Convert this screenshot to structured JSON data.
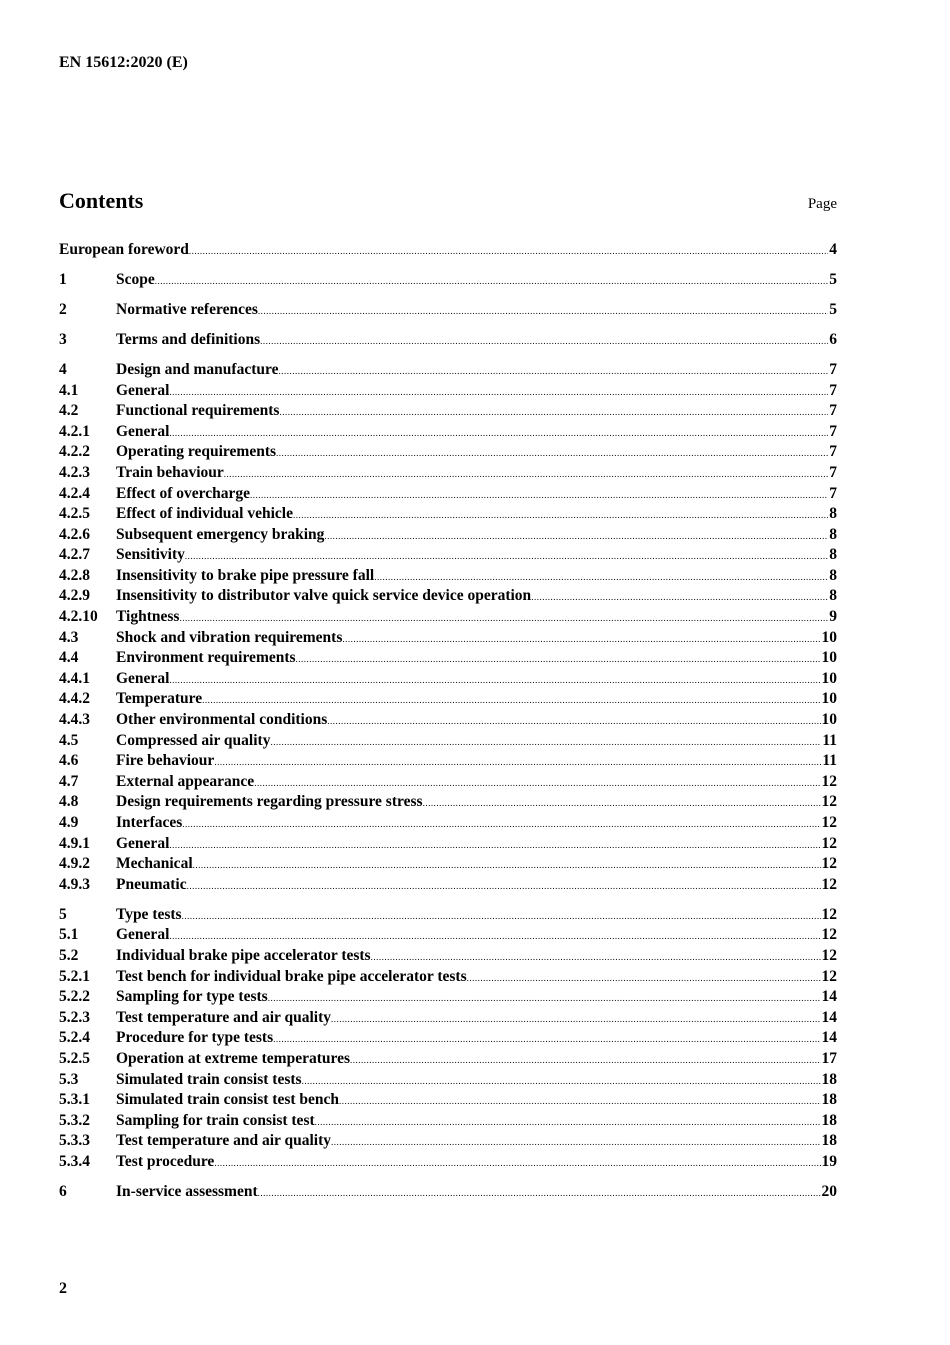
{
  "header": {
    "doc_id": "EN 15612:2020 (E)"
  },
  "contents": {
    "title": "Contents",
    "page_label": "Page"
  },
  "entries": [
    {
      "num": "",
      "title": "European foreword",
      "page": "4",
      "major": true
    },
    {
      "num": "1",
      "title": "Scope",
      "page": "5",
      "major": true
    },
    {
      "num": "2",
      "title": "Normative references",
      "page": "5",
      "major": true
    },
    {
      "num": "3",
      "title": "Terms and definitions",
      "page": "6",
      "major": true
    },
    {
      "num": "4",
      "title": "Design and manufacture",
      "page": "7",
      "major": true
    },
    {
      "num": "4.1",
      "title": "General",
      "page": "7"
    },
    {
      "num": "4.2",
      "title": "Functional requirements",
      "page": "7"
    },
    {
      "num": "4.2.1",
      "title": "General",
      "page": "7"
    },
    {
      "num": "4.2.2",
      "title": "Operating requirements",
      "page": "7"
    },
    {
      "num": "4.2.3",
      "title": "Train behaviour",
      "page": "7"
    },
    {
      "num": "4.2.4",
      "title": "Effect of overcharge",
      "page": "7"
    },
    {
      "num": "4.2.5",
      "title": "Effect of individual vehicle",
      "page": "8"
    },
    {
      "num": "4.2.6",
      "title": "Subsequent emergency braking",
      "page": "8"
    },
    {
      "num": "4.2.7",
      "title": "Sensitivity",
      "page": "8"
    },
    {
      "num": "4.2.8",
      "title": "Insensitivity to brake pipe pressure fall",
      "page": "8"
    },
    {
      "num": "4.2.9",
      "title": "Insensitivity to distributor valve quick service device operation",
      "page": "8"
    },
    {
      "num": "4.2.10",
      "title": "Tightness",
      "page": "9"
    },
    {
      "num": "4.3",
      "title": "Shock and vibration requirements",
      "page": "10"
    },
    {
      "num": "4.4",
      "title": "Environment requirements",
      "page": "10"
    },
    {
      "num": "4.4.1",
      "title": "General",
      "page": "10"
    },
    {
      "num": "4.4.2",
      "title": "Temperature",
      "page": "10"
    },
    {
      "num": "4.4.3",
      "title": "Other environmental conditions",
      "page": "10"
    },
    {
      "num": "4.5",
      "title": "Compressed air quality",
      "page": "11"
    },
    {
      "num": "4.6",
      "title": "Fire behaviour",
      "page": "11"
    },
    {
      "num": "4.7",
      "title": "External appearance",
      "page": "12"
    },
    {
      "num": "4.8",
      "title": "Design requirements regarding pressure stress",
      "page": "12"
    },
    {
      "num": "4.9",
      "title": "Interfaces",
      "page": "12"
    },
    {
      "num": "4.9.1",
      "title": "General",
      "page": "12"
    },
    {
      "num": "4.9.2",
      "title": "Mechanical",
      "page": "12"
    },
    {
      "num": "4.9.3",
      "title": "Pneumatic",
      "page": "12"
    },
    {
      "num": "5",
      "title": "Type tests",
      "page": "12",
      "major": true
    },
    {
      "num": "5.1",
      "title": "General",
      "page": "12"
    },
    {
      "num": "5.2",
      "title": "Individual brake pipe accelerator tests",
      "page": "12"
    },
    {
      "num": "5.2.1",
      "title": "Test bench for individual brake pipe accelerator tests",
      "page": "12"
    },
    {
      "num": "5.2.2",
      "title": "Sampling for type tests",
      "page": "14"
    },
    {
      "num": "5.2.3",
      "title": "Test temperature and air quality",
      "page": "14"
    },
    {
      "num": "5.2.4",
      "title": "Procedure for type tests",
      "page": "14"
    },
    {
      "num": "5.2.5",
      "title": "Operation at extreme temperatures",
      "page": "17"
    },
    {
      "num": "5.3",
      "title": "Simulated train consist tests",
      "page": "18"
    },
    {
      "num": "5.3.1",
      "title": "Simulated train consist test bench",
      "page": "18"
    },
    {
      "num": "5.3.2",
      "title": "Sampling for train consist test",
      "page": "18"
    },
    {
      "num": "5.3.3",
      "title": "Test temperature and air quality",
      "page": "18"
    },
    {
      "num": "5.3.4",
      "title": "Test procedure",
      "page": "19"
    },
    {
      "num": "6",
      "title": "In-service assessment",
      "page": "20",
      "major": true
    }
  ],
  "footer": {
    "page_number": "2"
  }
}
